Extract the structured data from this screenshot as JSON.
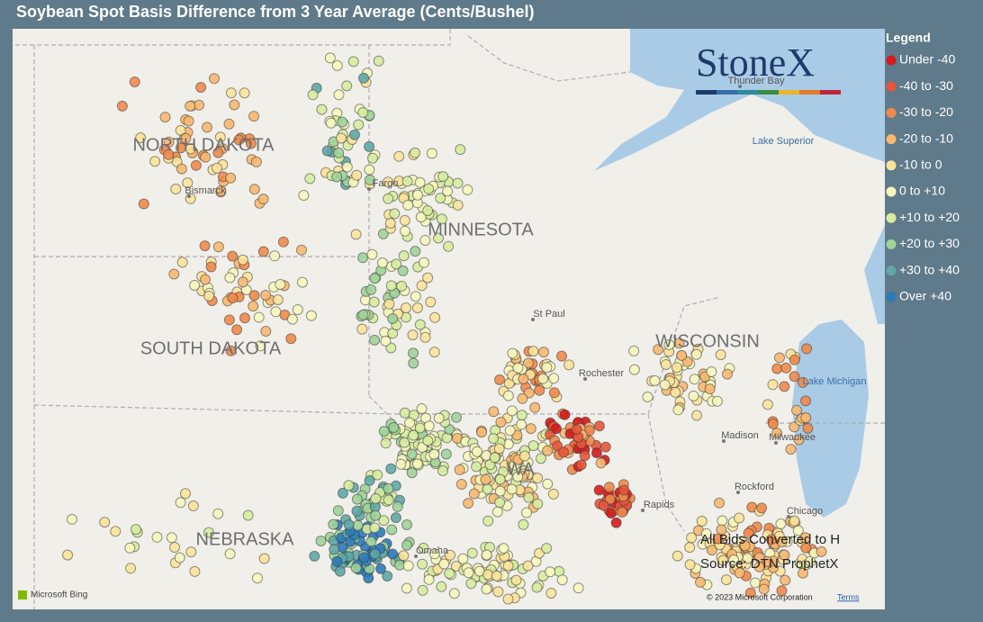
{
  "title": "Soybean Spot Basis Difference from 3 Year Average (Cents/Bushel)",
  "legend": {
    "title": "Legend",
    "items": [
      {
        "label": "Under -40",
        "color": "#d7191c"
      },
      {
        "label": "-40 to -30",
        "color": "#e8553a"
      },
      {
        "label": "-30 to -20",
        "color": "#f08a4b"
      },
      {
        "label": "-20 to -10",
        "color": "#f9b870"
      },
      {
        "label": "-10 to 0",
        "color": "#fde29a"
      },
      {
        "label": "0 to +10",
        "color": "#f6f7bd"
      },
      {
        "label": "+10 to +20",
        "color": "#d6eca0"
      },
      {
        "label": "+20 to +30",
        "color": "#9fd39a"
      },
      {
        "label": "+30 to +40",
        "color": "#5fa9a6"
      },
      {
        "label": "Over +40",
        "color": "#2b7bba"
      }
    ]
  },
  "logo": "StoneX",
  "map_labels": {
    "states": [
      "NORTH DAKOTA",
      "SOUTH DAKOTA",
      "MINNESOTA",
      "WISCONSIN",
      "NEBRASKA",
      "WA"
    ],
    "cities": [
      "Bismarck",
      "Fargo",
      "St Paul",
      "Rochester",
      "Madison",
      "Milwaukee",
      "Rockford",
      "Chicago",
      "Omaha",
      "Rapids",
      "Thunder Bay"
    ],
    "water": [
      "Lake Superior",
      "Lake Michigan"
    ]
  },
  "notes": [
    "All Bids Converted to H",
    "Source: DTN ProphetX"
  ],
  "attribution": {
    "provider": "Microsoft Bing",
    "copyright": "© 2023 Microsoft Corporation",
    "terms": "Terms"
  }
}
